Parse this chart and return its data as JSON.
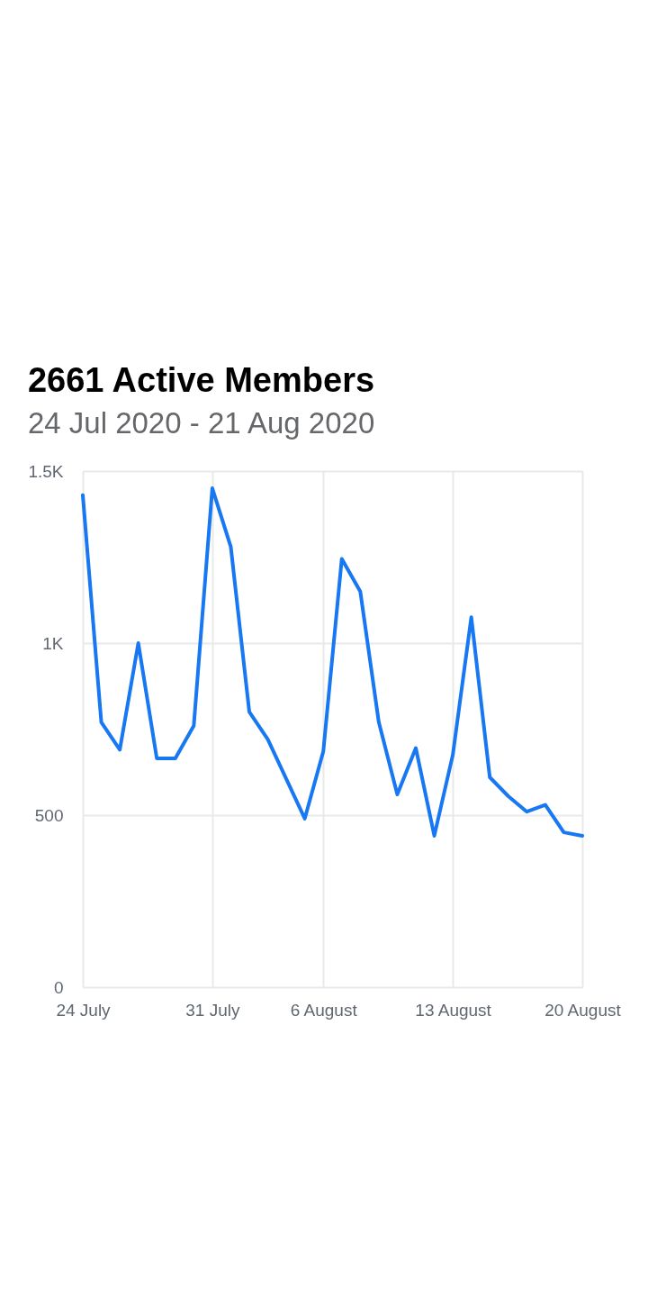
{
  "chart_data": {
    "type": "line",
    "title": "2661 Active Members",
    "subtitle": "24 Jul 2020 - 21 Aug 2020",
    "x": [
      "2020-07-24",
      "2020-07-25",
      "2020-07-26",
      "2020-07-27",
      "2020-07-28",
      "2020-07-29",
      "2020-07-30",
      "2020-07-31",
      "2020-08-01",
      "2020-08-02",
      "2020-08-03",
      "2020-08-04",
      "2020-08-05",
      "2020-08-06",
      "2020-08-07",
      "2020-08-08",
      "2020-08-09",
      "2020-08-10",
      "2020-08-11",
      "2020-08-12",
      "2020-08-13",
      "2020-08-14",
      "2020-08-15",
      "2020-08-16",
      "2020-08-17",
      "2020-08-18",
      "2020-08-19",
      "2020-08-20"
    ],
    "series": [
      {
        "color": "#1877f2",
        "values": [
          1430,
          770,
          690,
          1000,
          665,
          665,
          760,
          1450,
          1280,
          800,
          720,
          605,
          490,
          685,
          1245,
          1150,
          770,
          560,
          695,
          440,
          675,
          1075,
          610,
          555,
          510,
          530,
          450,
          440
        ]
      }
    ],
    "xlim": [
      "2020-07-24",
      "2020-08-20"
    ],
    "xticks": [
      {
        "value": "2020-07-24",
        "label": "24 July"
      },
      {
        "value": "2020-07-31",
        "label": "31 July"
      },
      {
        "value": "2020-08-06",
        "label": "6 August"
      },
      {
        "value": "2020-08-13",
        "label": "13 August"
      },
      {
        "value": "2020-08-20",
        "label": "20 August"
      }
    ],
    "ylim": [
      0,
      1500
    ],
    "yticks": [
      0,
      500,
      {
        "value": 1000,
        "label": "1K"
      },
      {
        "value": 1500,
        "label": "1.5K"
      }
    ],
    "grid": true
  }
}
